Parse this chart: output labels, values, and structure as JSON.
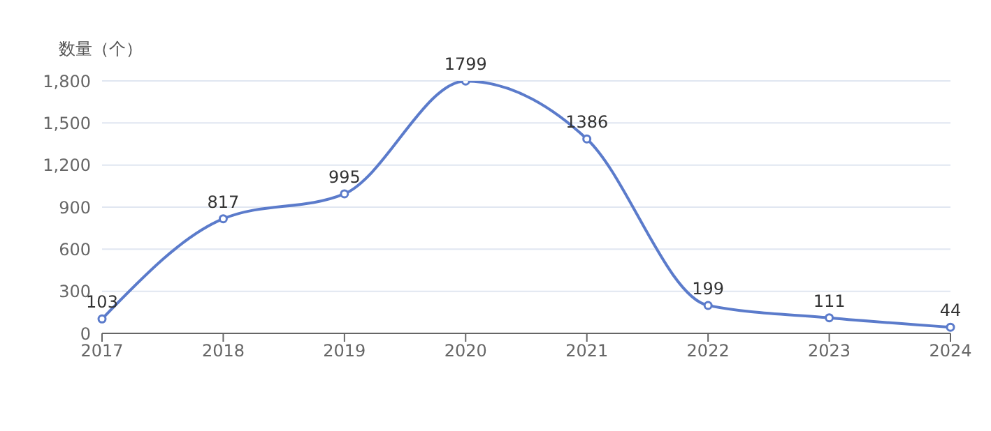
{
  "chart_data": {
    "type": "line",
    "ylabel": "数量（个）",
    "categories": [
      "2017",
      "2018",
      "2019",
      "2020",
      "2021",
      "2022",
      "2023",
      "2024"
    ],
    "series": [
      {
        "color": "#5b7bcb",
        "values": [
          103,
          817,
          995,
          1799,
          1386,
          199,
          111,
          44
        ]
      }
    ],
    "ylim": [
      0,
      1800
    ],
    "yticks": [
      0,
      300,
      600,
      900,
      {
        "value": 1200,
        "label": "1,200"
      },
      {
        "value": 1500,
        "label": "1,500"
      },
      {
        "value": 1800,
        "label": "1,800"
      }
    ],
    "grid": "y",
    "marker": "circle",
    "data_labels": true
  }
}
